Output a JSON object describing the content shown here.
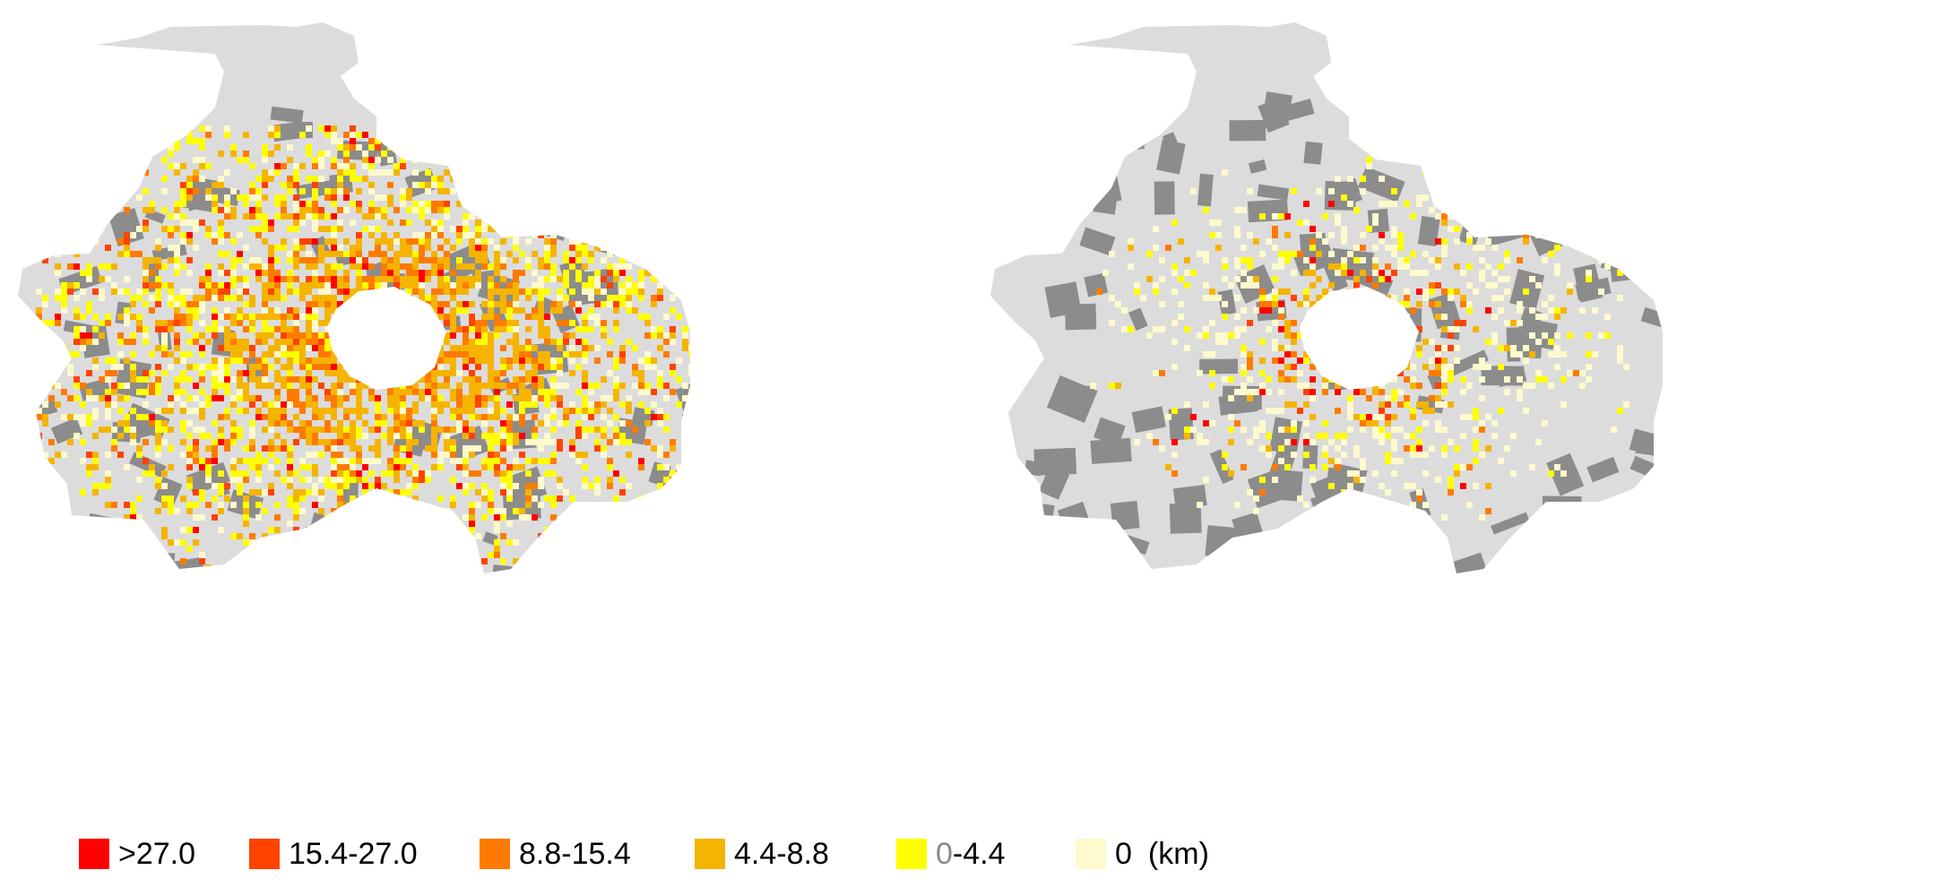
{
  "legend": {
    "items": [
      {
        "label": ">27.0",
        "color": "#ff0000"
      },
      {
        "label": "15.4-27.0",
        "color": "#ff4200"
      },
      {
        "label": "8.8-15.4",
        "color": "#ff7a00"
      },
      {
        "label": "4.4-8.8",
        "color": "#f5b400"
      },
      {
        "label_zero": "0",
        "label_rest": "-4.4",
        "color": "#ffff00"
      },
      {
        "label": "0",
        "color": "#fffacd"
      }
    ],
    "unit": "(km)"
  },
  "maps": [
    {
      "panel": "left",
      "intensity": "high"
    },
    {
      "panel": "right",
      "intensity": "low"
    }
  ],
  "colors": {
    "background_region": "#dcdcdc",
    "built_up": "#8c8c8c",
    "center_blank": "#ffffff"
  }
}
